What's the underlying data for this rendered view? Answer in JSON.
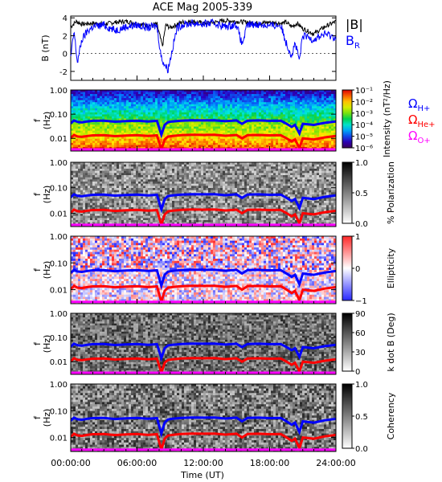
{
  "title": "ACE Mag 2005-339",
  "xlabel": "Time (UT)",
  "x_ticks": [
    "00:00:00",
    "06:00:00",
    "12:00:00",
    "18:00:00",
    "24:00:00"
  ],
  "colors": {
    "B_total": "#000000",
    "B_R": "#0000ff",
    "f_H": "#0000ff",
    "f_He": "#ff0000",
    "f_O": "#ff00ff"
  },
  "legend_top": {
    "total": "|B|",
    "radial_base": "B",
    "radial_sub": "R"
  },
  "legend_gyro": [
    {
      "base": "Ω",
      "sub": "H+",
      "color": "#0000ff"
    },
    {
      "base": "Ω",
      "sub": "He+",
      "color": "#ff0000"
    },
    {
      "base": "Ω",
      "sub": "O+",
      "color": "#ff00ff"
    }
  ],
  "chart_data": [
    {
      "type": "line",
      "title": "ACE Mag 2005-339",
      "ylabel": "B (nT)",
      "ylim": [
        -3,
        4.2
      ],
      "y_ticks": [
        "-2",
        "0",
        "2",
        "4"
      ],
      "x_range_hours": [
        0,
        24
      ],
      "series": [
        {
          "name": "|B|",
          "x": [
            0,
            0.5,
            1,
            2,
            3,
            4,
            5,
            6,
            7,
            7.8,
            8.3,
            8.6,
            9,
            9.5,
            10,
            11,
            12,
            13,
            14,
            15,
            16,
            17,
            18,
            19,
            19.5,
            20,
            20.5,
            21,
            22,
            23,
            24
          ],
          "y": [
            3.0,
            3.6,
            3.3,
            3.4,
            3.3,
            3.5,
            3.6,
            3.4,
            3.1,
            3.3,
            0.8,
            3.2,
            2.9,
            3.2,
            3.5,
            3.6,
            3.4,
            3.5,
            3.7,
            3.6,
            3.5,
            3.4,
            3.5,
            3.4,
            3.5,
            3.0,
            3.4,
            2.8,
            2.2,
            3.0,
            3.6
          ]
        },
        {
          "name": "B_R",
          "x": [
            0,
            0.3,
            0.6,
            1,
            1.5,
            2,
            3,
            4,
            5,
            6,
            7,
            7.8,
            8.2,
            8.5,
            8.8,
            9.2,
            9.6,
            10,
            11,
            12,
            13,
            14,
            15,
            15.5,
            16,
            17,
            18,
            19,
            19.5,
            20,
            20.3,
            20.7,
            21,
            22,
            23,
            24
          ],
          "y": [
            -0.5,
            2.5,
            -1.0,
            1.5,
            2.5,
            3.0,
            3.2,
            2.6,
            3.0,
            3.2,
            2.9,
            3.1,
            -0.5,
            -1.2,
            -1.8,
            0.5,
            2.8,
            3.2,
            3.4,
            3.3,
            3.4,
            3.0,
            3.3,
            1.0,
            3.2,
            3.3,
            3.1,
            3.2,
            1.2,
            -0.2,
            1.2,
            -0.8,
            2.0,
            1.6,
            2.2,
            1.8
          ]
        }
      ]
    },
    {
      "type": "heatmap",
      "ylabel": "f (Hz)",
      "y_scale": "log",
      "ylim": [
        0.003,
        1.0
      ],
      "y_ticks": [
        "1.00",
        "0.10",
        "0.01"
      ],
      "colorbar": {
        "label": "Intensity (nT²/Hz)",
        "scale": "log",
        "range": [
          1e-06,
          0.1
        ],
        "ticks": [
          "10⁻¹",
          "10⁻²",
          "10⁻³",
          "10⁻⁴",
          "10⁻⁵",
          "10⁻⁶"
        ],
        "palette": "rainbow"
      }
    },
    {
      "type": "heatmap",
      "ylabel": "f (Hz)",
      "y_scale": "log",
      "ylim": [
        0.003,
        1.0
      ],
      "y_ticks": [
        "1.00",
        "0.10",
        "0.01"
      ],
      "colorbar": {
        "label": "% Polarization",
        "range": [
          0.0,
          1.0
        ],
        "ticks": [
          "1.0",
          "0.5",
          "0.0"
        ],
        "palette": "grayscale"
      }
    },
    {
      "type": "heatmap",
      "ylabel": "f (Hz)",
      "y_scale": "log",
      "ylim": [
        0.003,
        1.0
      ],
      "y_ticks": [
        "1.00",
        "0.10",
        "0.01"
      ],
      "colorbar": {
        "label": "Ellipticity",
        "range": [
          -1,
          1
        ],
        "ticks": [
          "1",
          "0",
          "−1"
        ],
        "palette": "blue-white-red"
      }
    },
    {
      "type": "heatmap",
      "ylabel": "f (Hz)",
      "y_scale": "log",
      "ylim": [
        0.003,
        1.0
      ],
      "y_ticks": [
        "1.00",
        "0.10",
        "0.01"
      ],
      "colorbar": {
        "label": "k dot B (Deg)",
        "range": [
          0,
          90
        ],
        "ticks": [
          "90",
          "60",
          "30",
          "0"
        ],
        "palette": "grayscale"
      }
    },
    {
      "type": "heatmap",
      "ylabel": "f (Hz)",
      "y_scale": "log",
      "ylim": [
        0.003,
        1.0
      ],
      "y_ticks": [
        "1.00",
        "0.10",
        "0.01"
      ],
      "colorbar": {
        "label": "Coherency",
        "range": [
          0.0,
          1.0
        ],
        "ticks": [
          "1.0",
          "0.5",
          "0.0"
        ],
        "palette": "grayscale"
      }
    }
  ],
  "gyrofrequency_lines": {
    "x_hours": [
      0,
      0.3,
      0.6,
      1,
      1.5,
      2,
      3,
      4,
      5,
      6,
      7,
      7.8,
      8.2,
      8.5,
      8.8,
      9.2,
      9.6,
      10,
      11,
      12,
      13,
      14,
      15,
      15.5,
      16,
      17,
      18,
      19,
      19.5,
      20,
      20.3,
      20.7,
      21,
      22,
      23,
      24
    ],
    "H_plus_hz": [
      0.042,
      0.055,
      0.048,
      0.046,
      0.05,
      0.053,
      0.054,
      0.049,
      0.052,
      0.054,
      0.05,
      0.053,
      0.014,
      0.036,
      0.047,
      0.05,
      0.052,
      0.054,
      0.056,
      0.055,
      0.056,
      0.051,
      0.055,
      0.04,
      0.054,
      0.055,
      0.053,
      0.054,
      0.041,
      0.03,
      0.036,
      0.016,
      0.04,
      0.036,
      0.044,
      0.05
    ],
    "He_plus_hz": [
      0.0105,
      0.0138,
      0.012,
      0.0115,
      0.0125,
      0.0133,
      0.0135,
      0.0123,
      0.013,
      0.0135,
      0.0125,
      0.0133,
      0.0035,
      0.009,
      0.0118,
      0.0125,
      0.013,
      0.0135,
      0.014,
      0.0138,
      0.014,
      0.0128,
      0.0138,
      0.01,
      0.0135,
      0.0138,
      0.0133,
      0.0135,
      0.0103,
      0.0075,
      0.009,
      0.004,
      0.01,
      0.009,
      0.011,
      0.0125
    ],
    "O_plus_hz": [
      0.0035,
      0.0035,
      0.0035,
      0.0035,
      0.0035,
      0.0035,
      0.0035,
      0.0035,
      0.0035,
      0.0035,
      0.0035,
      0.0035,
      0.0035,
      0.0035,
      0.0035,
      0.0035,
      0.0035,
      0.0035,
      0.0035,
      0.0035,
      0.0035,
      0.0035,
      0.0035,
      0.0035,
      0.0035,
      0.0035,
      0.0035,
      0.0035,
      0.0035,
      0.0035,
      0.0035,
      0.0035,
      0.0035,
      0.0035,
      0.0035,
      0.0035
    ]
  }
}
